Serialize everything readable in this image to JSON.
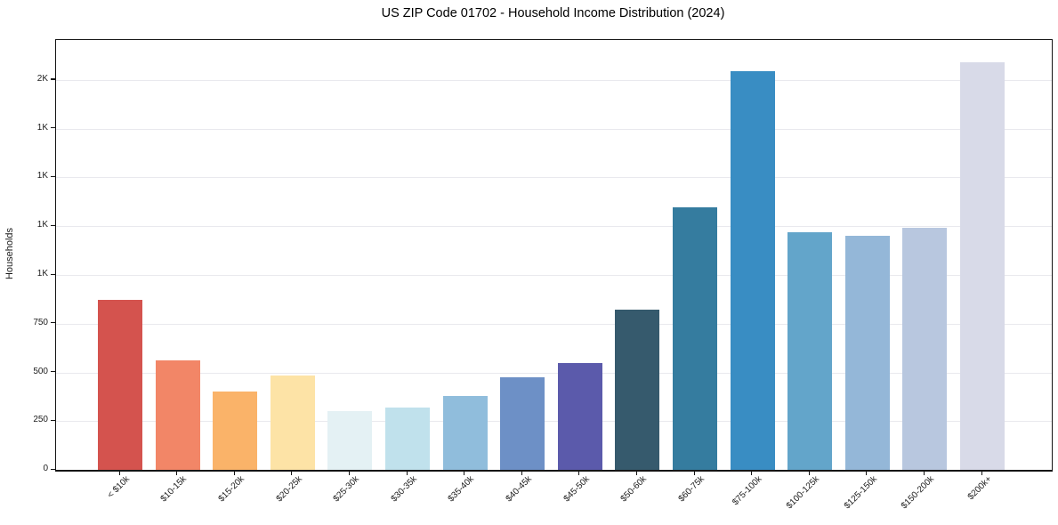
{
  "chart_data": {
    "type": "bar",
    "title": "US ZIP Code 01702 - Household Income Distribution (2024)",
    "xlabel": "",
    "ylabel": "Households",
    "categories": [
      "< $10k",
      "$10-15k",
      "$15-20k",
      "$20-25k",
      "$25-30k",
      "$30-35k",
      "$35-40k",
      "$40-45k",
      "$45-50k",
      "$50-60k",
      "$60-75k",
      "$75-100k",
      "$100-125k",
      "$125-150k",
      "$150-200k",
      "$200k+"
    ],
    "values": [
      870,
      560,
      400,
      485,
      300,
      320,
      378,
      473,
      550,
      820,
      1345,
      2045,
      1220,
      1200,
      1240,
      2090
    ],
    "bar_colors": [
      "#d4534e",
      "#f28667",
      "#fab369",
      "#fde3a6",
      "#e4f1f4",
      "#c0e1ec",
      "#90bddc",
      "#6d90c6",
      "#5b5aab",
      "#365a6d",
      "#357c9f",
      "#398dc3",
      "#63a5ca",
      "#94b7d8",
      "#b8c7df",
      "#d8dae8"
    ],
    "y_ticks": [
      {
        "value": 0,
        "label": "0"
      },
      {
        "value": 250,
        "label": "250"
      },
      {
        "value": 500,
        "label": "500"
      },
      {
        "value": 750,
        "label": "750"
      },
      {
        "value": 1000,
        "label": "1K"
      },
      {
        "value": 1250,
        "label": "1K"
      },
      {
        "value": 1500,
        "label": "1K"
      },
      {
        "value": 1750,
        "label": "1K"
      },
      {
        "value": 2000,
        "label": "2K"
      }
    ],
    "ylim": [
      0,
      2205
    ],
    "grid": "horizontal",
    "legend": "none",
    "grid_color": "#e9e9ee",
    "spine_color": "#141414",
    "text_color": "#1a1a1a",
    "background": "#ffffff"
  }
}
